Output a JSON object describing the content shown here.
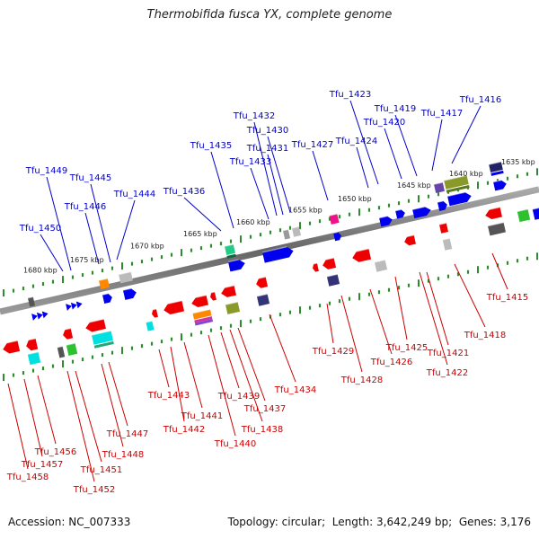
{
  "title": "Thermobifida fusca YX, complete genome",
  "accession_label": "Accession:",
  "accession": "NC_007333",
  "topology_label": "Topology:",
  "topology": "circular",
  "length_label": "Length:",
  "length": "3,642,249 bp",
  "genes_label": "Genes:",
  "genes": "3,176",
  "colors": {
    "background": "#ffffff",
    "backbone": "#777777",
    "scale_dots": "#2e8b2e",
    "upper_label": "#0000cc",
    "lower_label": "#cc0000",
    "gene_red": "#ee0000",
    "gene_blue": "#0000ee",
    "gene_gray": "#bbbbbb",
    "gene_cyan": "#00e0e0",
    "gene_green": "#2ec02e",
    "gene_olive": "#8a9a2a",
    "gene_purple": "#444488",
    "gene_pink": "#ee1188",
    "gene_orange": "#ff8800"
  },
  "kbp_marks": [
    "1635 kbp",
    "1640 kbp",
    "1645 kbp",
    "1650 kbp",
    "1655 kbp",
    "1660 kbp",
    "1665 kbp",
    "1670 kbp",
    "1675 kbp",
    "1680 kbp"
  ],
  "upper_genes": [
    "Tfu_1416",
    "Tfu_1417",
    "Tfu_1419",
    "Tfu_1420",
    "Tfu_1423",
    "Tfu_1424",
    "Tfu_1427",
    "Tfu_1430",
    "Tfu_1431",
    "Tfu_1432",
    "Tfu_1433",
    "Tfu_1435",
    "Tfu_1436",
    "Tfu_1444",
    "Tfu_1445",
    "Tfu_1446",
    "Tfu_1449",
    "Tfu_1450"
  ],
  "lower_genes": [
    "Tfu_1415",
    "Tfu_1418",
    "Tfu_1421",
    "Tfu_1422",
    "Tfu_1425",
    "Tfu_1426",
    "Tfu_1428",
    "Tfu_1429",
    "Tfu_1434",
    "Tfu_1437",
    "Tfu_1438",
    "Tfu_1439",
    "Tfu_1440",
    "Tfu_1441",
    "Tfu_1442",
    "Tfu_1443",
    "Tfu_1447",
    "Tfu_1448",
    "Tfu_1451",
    "Tfu_1452",
    "Tfu_1456",
    "Tfu_1457",
    "Tfu_1458"
  ]
}
